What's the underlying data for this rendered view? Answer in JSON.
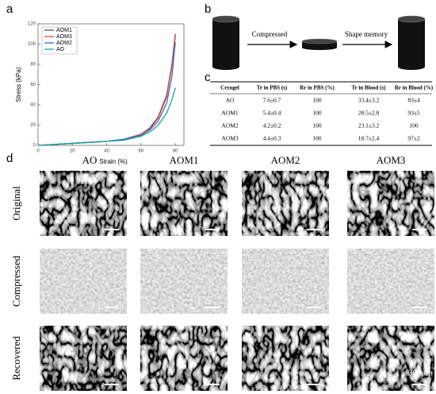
{
  "panel_labels": [
    "a",
    "b",
    "c",
    "d"
  ],
  "chart_data": {
    "type": "line",
    "xlabel": "Strain (%)",
    "ylabel": "Stress (kPa)",
    "x": [
      0,
      10,
      20,
      30,
      40,
      50,
      60,
      65,
      70,
      75,
      78,
      80
    ],
    "series": [
      {
        "name": "AOM1",
        "color": "#555555",
        "values": [
          0,
          1,
          2,
          3,
          4,
          6,
          11,
          17,
          28,
          50,
          80,
          110
        ]
      },
      {
        "name": "AOM3",
        "color": "#e8483a",
        "values": [
          0,
          1,
          2,
          3,
          4,
          6,
          11,
          16,
          27,
          48,
          78,
          108
        ]
      },
      {
        "name": "AOM2",
        "color": "#2f6fd0",
        "values": [
          0,
          1,
          2,
          3,
          4,
          6,
          10,
          15,
          24,
          42,
          68,
          102
        ]
      },
      {
        "name": "AO",
        "color": "#1aa39a",
        "values": [
          0,
          1,
          2,
          3,
          4,
          5,
          9,
          13,
          20,
          32,
          45,
          57
        ]
      }
    ],
    "xlim": [
      0,
      85
    ],
    "ylim": [
      0,
      120
    ],
    "xticks": [
      0,
      20,
      40,
      60,
      80
    ],
    "yticks": [
      0,
      20,
      40,
      60,
      80,
      100,
      120
    ],
    "legend": "upper left"
  },
  "diagram": {
    "steps": [
      "Compressed",
      "Shape memory"
    ]
  },
  "table": {
    "header": [
      "Cryogel",
      "Tr in PBS (s)",
      "Rr in PBS (%)",
      "Tr in Blood (s)",
      "Rr in Blood (%)"
    ],
    "rows": [
      [
        "AO",
        "7.6±0.7",
        "100",
        "33.4±3.2",
        "83±4"
      ],
      [
        "AOM1",
        "5.4±0.4",
        "100",
        "28.5±2.8",
        "93±5"
      ],
      [
        "AOM2",
        "4.2±0.2",
        "100",
        "23.1±3.2",
        "100"
      ],
      [
        "AOM3",
        "4.4±0.3",
        "100",
        "18.7±2.4",
        "97±2"
      ]
    ]
  },
  "images": {
    "columns": [
      "AO",
      "AOM1",
      "AOM2",
      "AOM3"
    ],
    "rows": [
      "Original",
      "Compressed",
      "Recovered"
    ],
    "scale_bar": "300μm"
  }
}
